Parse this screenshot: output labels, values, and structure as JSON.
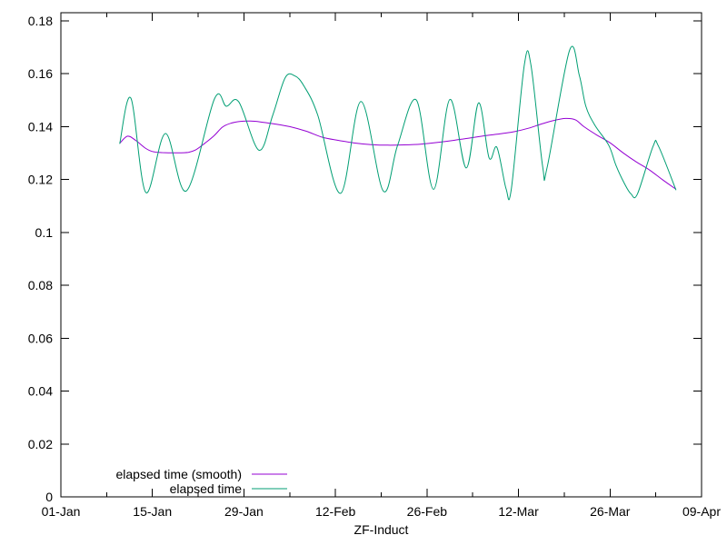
{
  "window": {
    "background": "#ffffff"
  },
  "chart_data": {
    "type": "line",
    "title": "",
    "xlabel": "ZF-Induct",
    "ylabel": "",
    "axis_color": "#000000",
    "text_color": "#000000",
    "grid": false,
    "legend": {
      "position": "bottom-left-inside"
    },
    "x_axis": {
      "encoding": "days since 01-Jan",
      "range_days": [
        0,
        98
      ],
      "tick_days": [
        0,
        14,
        28,
        42,
        56,
        70,
        84,
        98
      ],
      "tick_labels": [
        "01-Jan",
        "15-Jan",
        "29-Jan",
        "12-Feb",
        "26-Feb",
        "12-Mar",
        "26-Mar",
        "09-Apr"
      ],
      "minor_tick_step_days": 7
    },
    "y_axis": {
      "range": [
        0,
        0.18
      ],
      "tick_values": [
        0,
        0.02,
        0.04,
        0.06,
        0.08,
        0.1,
        0.12,
        0.14,
        0.16,
        0.18
      ],
      "tick_labels": [
        "0",
        "0.02",
        "0.04",
        "0.06",
        "0.08",
        "0.1",
        "0.12",
        "0.14",
        "0.16",
        "0.18"
      ]
    },
    "series": [
      {
        "name": "elapsed time (smooth)",
        "color": "#9400d3",
        "points": [
          [
            9.0,
            0.1337
          ],
          [
            10.2,
            0.1364
          ],
          [
            11.5,
            0.1347
          ],
          [
            12.9,
            0.1319
          ],
          [
            14.0,
            0.1306
          ],
          [
            15.5,
            0.1302
          ],
          [
            17.5,
            0.1301
          ],
          [
            19.5,
            0.1303
          ],
          [
            20.6,
            0.1312
          ],
          [
            22.0,
            0.1337
          ],
          [
            23.4,
            0.1365
          ],
          [
            24.7,
            0.1398
          ],
          [
            26.0,
            0.1413
          ],
          [
            27.5,
            0.142
          ],
          [
            29.0,
            0.1421
          ],
          [
            30.5,
            0.1418
          ],
          [
            32.5,
            0.1411
          ],
          [
            35.0,
            0.14
          ],
          [
            37.5,
            0.1383
          ],
          [
            40.0,
            0.136
          ],
          [
            42.5,
            0.1348
          ],
          [
            45.0,
            0.1338
          ],
          [
            47.5,
            0.1332
          ],
          [
            50.0,
            0.133
          ],
          [
            52.5,
            0.1331
          ],
          [
            55.0,
            0.1334
          ],
          [
            57.5,
            0.134
          ],
          [
            60.0,
            0.1348
          ],
          [
            62.5,
            0.1357
          ],
          [
            65.0,
            0.1366
          ],
          [
            67.5,
            0.1374
          ],
          [
            69.5,
            0.1382
          ],
          [
            71.5,
            0.1394
          ],
          [
            73.5,
            0.141
          ],
          [
            75.5,
            0.1424
          ],
          [
            77.2,
            0.1431
          ],
          [
            78.7,
            0.1426
          ],
          [
            80.0,
            0.14
          ],
          [
            82.0,
            0.1368
          ],
          [
            84.0,
            0.1339
          ],
          [
            86.0,
            0.1301
          ],
          [
            88.0,
            0.1267
          ],
          [
            90.0,
            0.1237
          ],
          [
            92.0,
            0.12
          ],
          [
            94.1,
            0.1163
          ]
        ]
      },
      {
        "name": "elapsed time",
        "color": "#009e73",
        "points": [
          [
            9.0,
            0.1335
          ],
          [
            10.7,
            0.1508
          ],
          [
            13.0,
            0.1151
          ],
          [
            16.0,
            0.1374
          ],
          [
            19.2,
            0.1157
          ],
          [
            23.5,
            0.1506
          ],
          [
            25.3,
            0.1477
          ],
          [
            27.2,
            0.1494
          ],
          [
            30.3,
            0.1311
          ],
          [
            32.4,
            0.1443
          ],
          [
            34.3,
            0.1585
          ],
          [
            35.8,
            0.1592
          ],
          [
            37.2,
            0.1553
          ],
          [
            39.3,
            0.1443
          ],
          [
            42.8,
            0.1148
          ],
          [
            45.9,
            0.1495
          ],
          [
            49.3,
            0.1157
          ],
          [
            51.5,
            0.1329
          ],
          [
            54.4,
            0.15
          ],
          [
            57.0,
            0.1163
          ],
          [
            59.5,
            0.1503
          ],
          [
            62.0,
            0.1244
          ],
          [
            63.9,
            0.149
          ],
          [
            65.5,
            0.1282
          ],
          [
            66.7,
            0.1322
          ],
          [
            68.1,
            0.1165
          ],
          [
            68.9,
            0.1165
          ],
          [
            70.9,
            0.1634
          ],
          [
            71.9,
            0.1634
          ],
          [
            73.7,
            0.1248
          ],
          [
            74.4,
            0.1248
          ],
          [
            77.8,
            0.1688
          ],
          [
            79.3,
            0.1594
          ],
          [
            80.3,
            0.1477
          ],
          [
            81.7,
            0.1405
          ],
          [
            83.8,
            0.133
          ],
          [
            84.9,
            0.1254
          ],
          [
            86.2,
            0.1185
          ],
          [
            87.2,
            0.1146
          ],
          [
            88.2,
            0.1146
          ],
          [
            90.6,
            0.1327
          ],
          [
            91.4,
            0.1327
          ],
          [
            94.1,
            0.116
          ]
        ]
      }
    ]
  }
}
